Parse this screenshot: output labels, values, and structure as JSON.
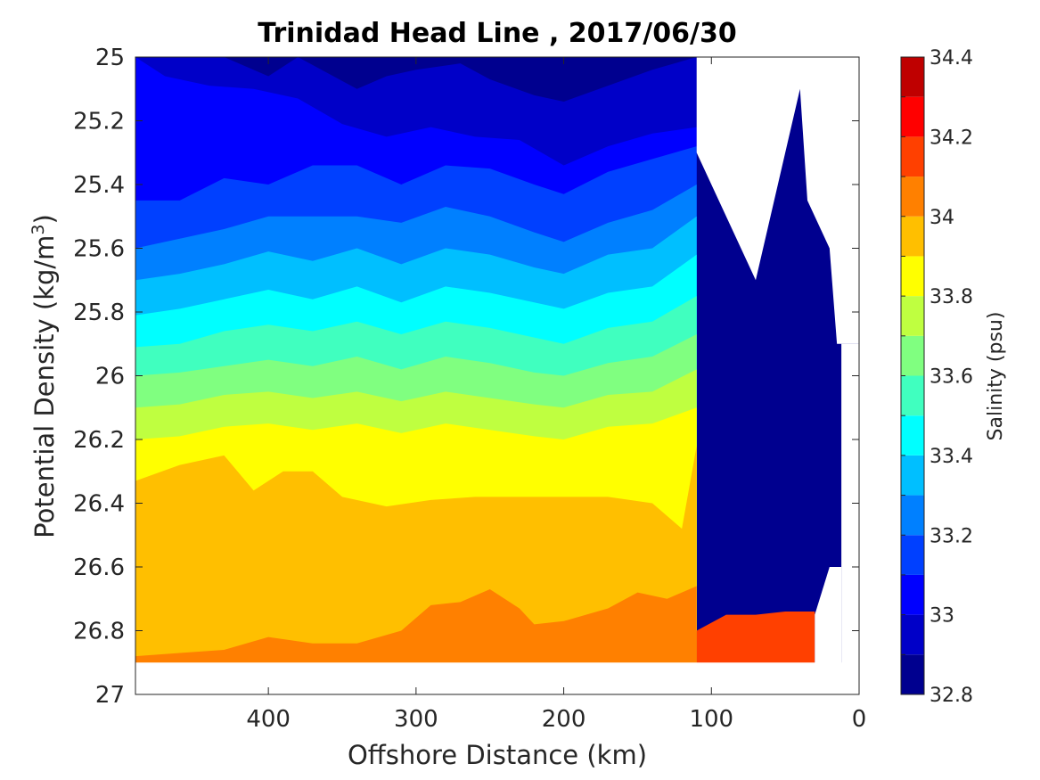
{
  "chart_data": {
    "type": "contourf",
    "title": "Trinidad Head Line , 2017/06/30",
    "xlabel": "Offshore Distance (km)",
    "ylabel": "Potential Density (kg/m",
    "ylabel_sup": "3",
    "ylabel_close": ")",
    "xlim": [
      490,
      0
    ],
    "ylim": [
      25,
      27
    ],
    "y_reversed": true,
    "x_reversed": true,
    "xticks": [
      400,
      300,
      200,
      100,
      0
    ],
    "xtick_labels": [
      "400",
      "300",
      "200",
      "100",
      "0"
    ],
    "yticks": [
      25,
      25.2,
      25.4,
      25.6,
      25.8,
      26,
      26.2,
      26.4,
      26.6,
      26.8,
      27
    ],
    "ytick_labels": [
      "25",
      "25.2",
      "25.4",
      "25.6",
      "25.8",
      "26",
      "26.2",
      "26.4",
      "26.6",
      "26.8",
      "27"
    ],
    "grid": false,
    "colorbar": {
      "label": "Salinity (psu)",
      "range": [
        32.8,
        34.4
      ],
      "ticks": [
        32.8,
        33,
        33.2,
        33.4,
        33.6,
        33.8,
        34,
        34.2,
        34.4
      ],
      "tick_labels": [
        "32.8",
        "33",
        "33.2",
        "33.4",
        "33.6",
        "33.8",
        "34",
        "34.2",
        "34.4"
      ],
      "levels": [
        32.8,
        32.9,
        33.0,
        33.1,
        33.2,
        33.3,
        33.4,
        33.5,
        33.6,
        33.7,
        33.8,
        33.9,
        34.0,
        34.1,
        34.2,
        34.3,
        34.4
      ],
      "colors": [
        "#00008f",
        "#0000c8",
        "#0000ff",
        "#0040ff",
        "#0080ff",
        "#00bfff",
        "#00ffff",
        "#40ffbf",
        "#80ff80",
        "#bfff40",
        "#ffff00",
        "#ffbf00",
        "#ff8000",
        "#ff4000",
        "#ff0000",
        "#bf0000"
      ]
    },
    "bands": [
      {
        "level": 32.9,
        "x": [
          490,
          430,
          400,
          380,
          340,
          320,
          300,
          270,
          250,
          220,
          200,
          170,
          140,
          110
        ],
        "y": [
          25.0,
          25.0,
          25.06,
          25.0,
          25.1,
          25.06,
          25.04,
          25.02,
          25.07,
          25.12,
          25.14,
          25.09,
          25.04,
          25.0
        ]
      },
      {
        "level": 33.0,
        "x": [
          490,
          470,
          440,
          410,
          380,
          350,
          320,
          290,
          260,
          230,
          200,
          170,
          140,
          110
        ],
        "y": [
          25.0,
          25.06,
          25.09,
          25.1,
          25.13,
          25.21,
          25.25,
          25.22,
          25.25,
          25.26,
          25.34,
          25.28,
          25.24,
          25.22
        ]
      },
      {
        "level": 33.1,
        "x": [
          490,
          460,
          430,
          400,
          370,
          340,
          310,
          280,
          250,
          220,
          200,
          170,
          140,
          110
        ],
        "y": [
          25.45,
          25.45,
          25.38,
          25.4,
          25.34,
          25.34,
          25.4,
          25.34,
          25.35,
          25.4,
          25.43,
          25.36,
          25.32,
          25.28
        ]
      },
      {
        "level": 33.2,
        "x": [
          490,
          460,
          430,
          400,
          370,
          340,
          310,
          280,
          250,
          220,
          200,
          170,
          140,
          110
        ],
        "y": [
          25.6,
          25.57,
          25.54,
          25.5,
          25.5,
          25.5,
          25.52,
          25.47,
          25.5,
          25.55,
          25.58,
          25.52,
          25.48,
          25.4
        ]
      },
      {
        "level": 33.3,
        "x": [
          490,
          460,
          430,
          400,
          370,
          340,
          310,
          280,
          250,
          220,
          200,
          170,
          140,
          110
        ],
        "y": [
          25.7,
          25.68,
          25.65,
          25.61,
          25.64,
          25.6,
          25.65,
          25.6,
          25.62,
          25.66,
          25.68,
          25.62,
          25.6,
          25.5
        ]
      },
      {
        "level": 33.4,
        "x": [
          490,
          460,
          430,
          400,
          370,
          340,
          310,
          280,
          250,
          220,
          200,
          170,
          140,
          110
        ],
        "y": [
          25.81,
          25.79,
          25.76,
          25.73,
          25.76,
          25.72,
          25.77,
          25.72,
          25.74,
          25.77,
          25.79,
          25.74,
          25.72,
          25.62
        ]
      },
      {
        "level": 33.5,
        "x": [
          490,
          460,
          430,
          400,
          370,
          340,
          310,
          280,
          250,
          220,
          200,
          170,
          140,
          110
        ],
        "y": [
          25.91,
          25.9,
          25.86,
          25.84,
          25.86,
          25.83,
          25.87,
          25.83,
          25.85,
          25.88,
          25.9,
          25.85,
          25.83,
          25.75
        ]
      },
      {
        "level": 33.6,
        "x": [
          490,
          460,
          430,
          400,
          370,
          340,
          310,
          280,
          250,
          220,
          200,
          170,
          140,
          110
        ],
        "y": [
          26.0,
          25.99,
          25.97,
          25.95,
          25.97,
          25.94,
          25.98,
          25.94,
          25.96,
          25.99,
          26.0,
          25.96,
          25.94,
          25.87
        ]
      },
      {
        "level": 33.7,
        "x": [
          490,
          460,
          430,
          400,
          370,
          340,
          310,
          280,
          250,
          220,
          200,
          170,
          140,
          110
        ],
        "y": [
          26.1,
          26.09,
          26.06,
          26.05,
          26.07,
          26.05,
          26.08,
          26.05,
          26.07,
          26.09,
          26.1,
          26.06,
          26.05,
          25.98
        ]
      },
      {
        "level": 33.8,
        "x": [
          490,
          460,
          430,
          400,
          370,
          340,
          310,
          280,
          250,
          220,
          200,
          170,
          140,
          110
        ],
        "y": [
          26.2,
          26.19,
          26.16,
          26.15,
          26.17,
          26.15,
          26.18,
          26.15,
          26.17,
          26.19,
          26.2,
          26.16,
          26.15,
          26.1
        ]
      },
      {
        "level": 33.9,
        "x": [
          490,
          460,
          430,
          410,
          390,
          370,
          350,
          320,
          290,
          260,
          230,
          200,
          170,
          140,
          120,
          110
        ],
        "y": [
          26.33,
          26.28,
          26.25,
          26.36,
          26.3,
          26.3,
          26.38,
          26.41,
          26.39,
          26.38,
          26.38,
          26.38,
          26.38,
          26.4,
          26.48,
          26.22
        ]
      },
      {
        "level": 34.0,
        "x": [
          490,
          460,
          430,
          400,
          370,
          340,
          310,
          290,
          270,
          250,
          230,
          220,
          200,
          170,
          150,
          130,
          110
        ],
        "y": [
          26.88,
          26.87,
          26.86,
          26.82,
          26.84,
          26.84,
          26.8,
          26.72,
          26.71,
          26.67,
          26.73,
          26.78,
          26.77,
          26.73,
          26.68,
          26.7,
          26.66
        ]
      },
      {
        "level": 34.1,
        "x": [
          110,
          90,
          70,
          50,
          30
        ],
        "y": [
          26.8,
          26.75,
          26.75,
          26.74,
          26.74
        ]
      }
    ],
    "masks": [
      {
        "region": "upper-right",
        "x": [
          110,
          110,
          35,
          35,
          70
        ],
        "y": [
          25.0,
          25.3,
          25.1,
          25.7,
          25.0
        ]
      },
      {
        "region": "bottom",
        "y_from": 26.9
      }
    ]
  }
}
